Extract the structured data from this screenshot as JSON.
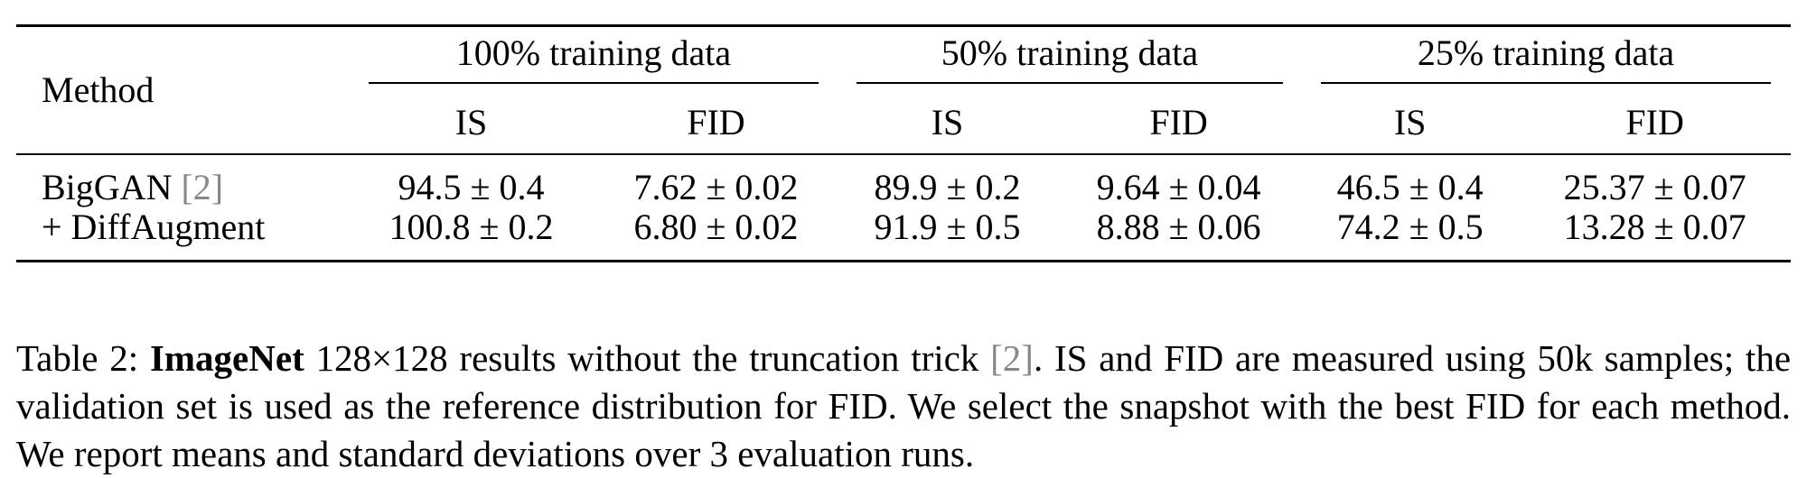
{
  "table": {
    "header": {
      "method": "Method",
      "groups": [
        "100% training data",
        "50% training data",
        "25% training data"
      ],
      "subcols": [
        "IS",
        "FID"
      ]
    },
    "rows": [
      {
        "method": "BigGAN",
        "cite": "[2]",
        "bold": false,
        "values": [
          "94.5 ± 0.4",
          "7.62 ± 0.02",
          "89.9 ± 0.2",
          "9.64 ± 0.04",
          "46.5 ± 0.4",
          "25.37 ± 0.07"
        ]
      },
      {
        "method": "+ DiffAugment",
        "cite": "",
        "bold": true,
        "values": [
          "100.8 ± 0.2",
          "6.80 ± 0.02",
          "91.9 ± 0.5",
          "8.88 ± 0.06",
          "74.2 ± 0.5",
          "13.28 ± 0.07"
        ]
      }
    ]
  },
  "caption": {
    "label": "Table 2:",
    "strong": "ImageNet",
    "part1": " 128×128 results without the truncation trick ",
    "cite": "[2]",
    "part2": ". IS and FID are measured using 50k samples; the validation set is used as the reference distribution for FID. We select the snapshot with the best FID for each method. We report means and standard deviations over 3 evaluation runs."
  },
  "colors": {
    "citation": "#888888",
    "text": "#000000"
  }
}
